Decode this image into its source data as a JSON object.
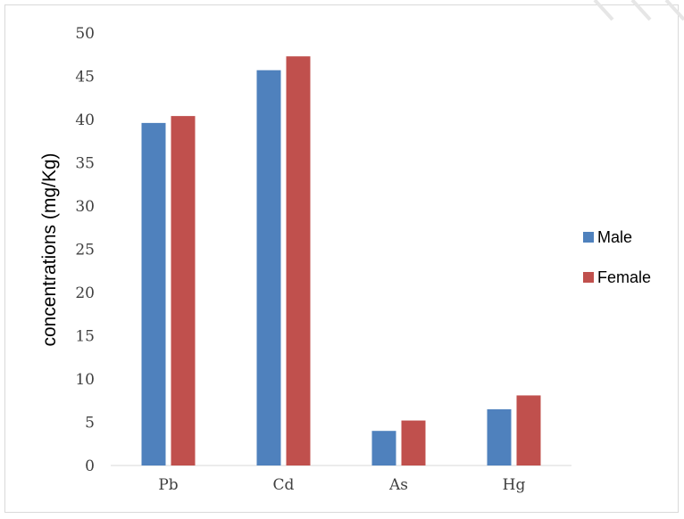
{
  "chart_data": {
    "type": "bar",
    "categories": [
      "Pb",
      "Cd",
      "As",
      "Hg"
    ],
    "series": [
      {
        "name": "Male",
        "values": [
          39.6,
          45.7,
          4.0,
          6.5
        ],
        "color": "#4F81BD"
      },
      {
        "name": "Female",
        "values": [
          40.4,
          47.3,
          5.2,
          8.1
        ],
        "color": "#C0504D"
      }
    ],
    "yticks": [
      "0",
      "5",
      "10",
      "15",
      "20",
      "25",
      "30",
      "35",
      "40",
      "45",
      "50"
    ],
    "ylim": [
      0,
      50
    ],
    "ylabel": "concentrations (mg/Kg)",
    "xlabel": "",
    "title": "",
    "grid": false,
    "legend_position": "right"
  }
}
